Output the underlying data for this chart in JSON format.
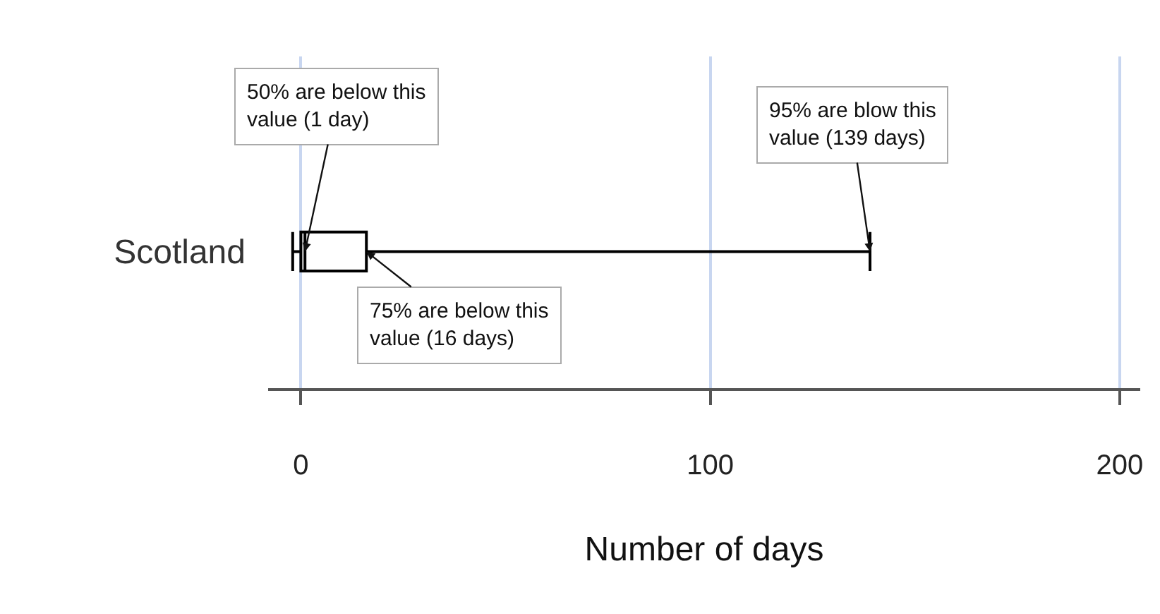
{
  "chart_data": {
    "type": "box",
    "orientation": "horizontal",
    "categories": [
      "Scotland"
    ],
    "boxes": [
      {
        "low": -2,
        "q1": 0,
        "median": 1,
        "q3": 16,
        "high": 139
      }
    ],
    "color": "#000000",
    "xlabel": "Number of days",
    "xlim": [
      -8,
      205
    ],
    "xticks": [
      0,
      100,
      200
    ],
    "grid": "x",
    "annotations": [
      {
        "text": "50% are below this\nvalue (1 day)",
        "x": 1,
        "y": "Scotland"
      },
      {
        "text": "95% are blow this\nvalue (139 days)",
        "x": 139,
        "y": "Scotland"
      },
      {
        "text": "75% are below this\nvalue (16 days)",
        "x": 16,
        "y": "Scotland"
      }
    ]
  }
}
